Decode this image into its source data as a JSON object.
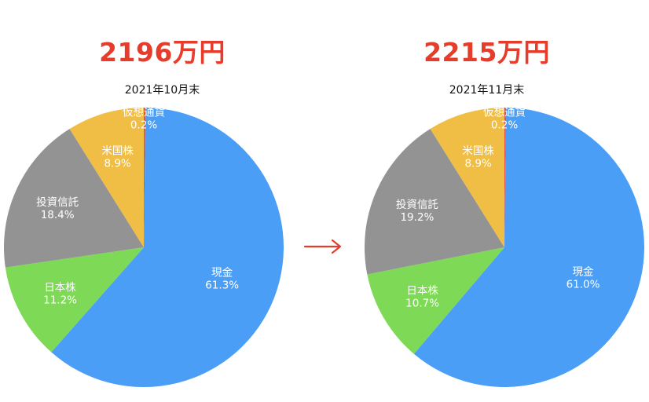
{
  "colors": {
    "title": "#e63c2b",
    "arrow": "#e63c2b",
    "slice_text": "#ffffff"
  },
  "arrow_icon": "right-arrow-icon",
  "chart_data": [
    {
      "type": "pie",
      "title": "2196万円",
      "subtitle": "2021年10月末",
      "slices": [
        {
          "label": "仮想通貨",
          "pct_label": "0.2%",
          "value": 0.2,
          "color": "#e0544a"
        },
        {
          "label": "現金",
          "pct_label": "61.3%",
          "value": 61.3,
          "color": "#4b9ef5"
        },
        {
          "label": "日本株",
          "pct_label": "11.2%",
          "value": 11.2,
          "color": "#7ed957"
        },
        {
          "label": "投資信託",
          "pct_label": "18.4%",
          "value": 18.4,
          "color": "#939393"
        },
        {
          "label": "米国株",
          "pct_label": "8.9%",
          "value": 8.9,
          "color": "#f0be44"
        }
      ]
    },
    {
      "type": "pie",
      "title": "2215万円",
      "subtitle": "2021年11月末",
      "slices": [
        {
          "label": "仮想通貨",
          "pct_label": "0.2%",
          "value": 0.2,
          "color": "#e0544a"
        },
        {
          "label": "現金",
          "pct_label": "61.0%",
          "value": 61.0,
          "color": "#4b9ef5"
        },
        {
          "label": "日本株",
          "pct_label": "10.7%",
          "value": 10.7,
          "color": "#7ed957"
        },
        {
          "label": "投資信託",
          "pct_label": "19.2%",
          "value": 19.2,
          "color": "#939393"
        },
        {
          "label": "米国株",
          "pct_label": "8.9%",
          "value": 8.9,
          "color": "#f0be44"
        }
      ]
    }
  ]
}
